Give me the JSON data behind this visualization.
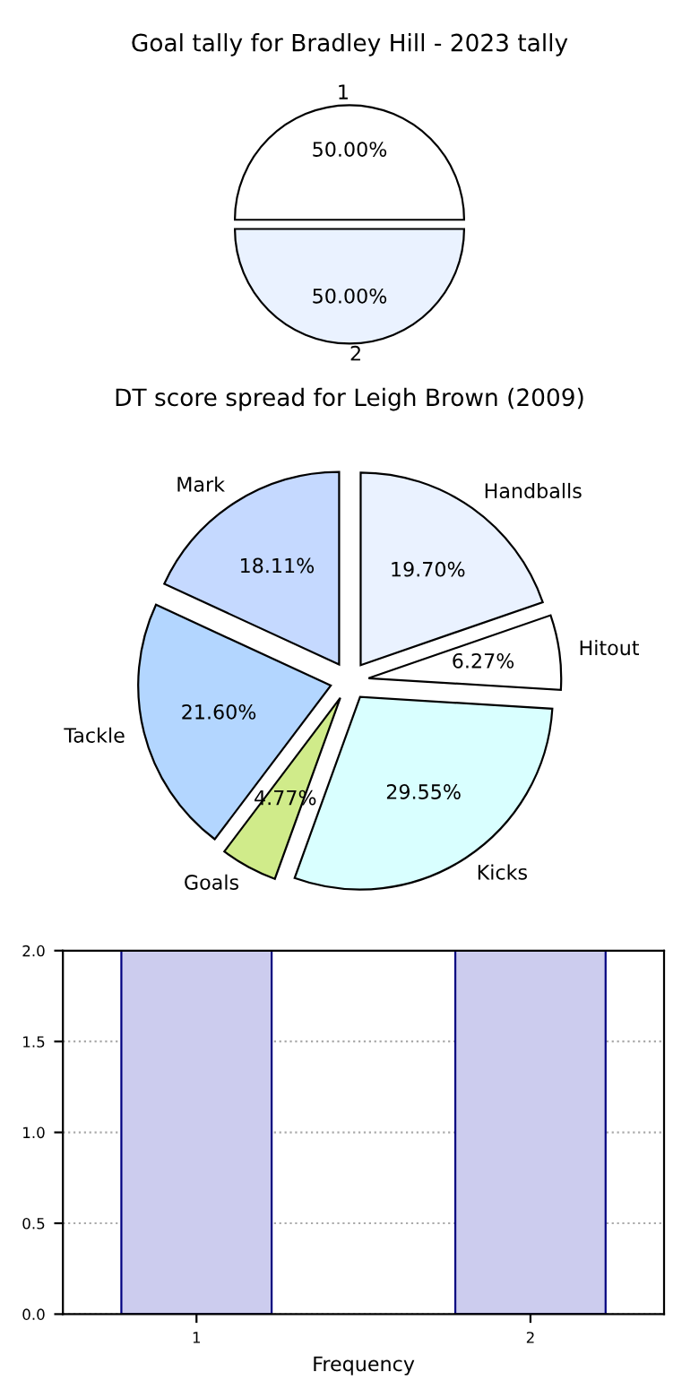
{
  "chart_data": [
    {
      "type": "bar",
      "x": [
        1,
        2
      ],
      "values": [
        2,
        2
      ],
      "color": "#ccccee",
      "xlabel": "Frequency",
      "xlim": [
        0.6,
        2.4
      ],
      "xticks": [
        1,
        2
      ],
      "ylim": [
        0,
        2
      ],
      "yticks": [
        {
          "value": 0,
          "label": "0.0"
        },
        {
          "value": 0.5,
          "label": "0.5"
        },
        {
          "value": 1,
          "label": "1.0"
        },
        {
          "value": 1.5,
          "label": "1.5"
        },
        {
          "value": 2,
          "label": "2.0"
        }
      ],
      "grid": true
    },
    {
      "type": "pie",
      "title": "Goal tally for Bradley Hill - 2023 tally",
      "categories": [
        "1",
        "2"
      ],
      "values": [
        50,
        50
      ],
      "colors": [
        "#ffffff",
        "#eaf2ff"
      ],
      "value_labels": [
        "50.00%",
        "50.00%"
      ]
    },
    {
      "type": "pie",
      "title": "DT score spread for Leigh Brown (2009)",
      "categories": [
        "Mark",
        "Tackle",
        "Goals",
        "Kicks",
        "Hitout",
        "Handballs"
      ],
      "values": [
        18.11,
        21.6,
        4.77,
        29.55,
        6.27,
        19.7
      ],
      "colors": [
        "#c5d9ff",
        "#b3d6ff",
        "#d0eb8a",
        "#d9ffff",
        "#ffffff",
        "#eaf2ff"
      ],
      "value_labels": [
        "18.11%",
        "21.60%",
        "4.77%",
        "29.55%",
        "6.27%",
        "19.70%"
      ]
    }
  ]
}
